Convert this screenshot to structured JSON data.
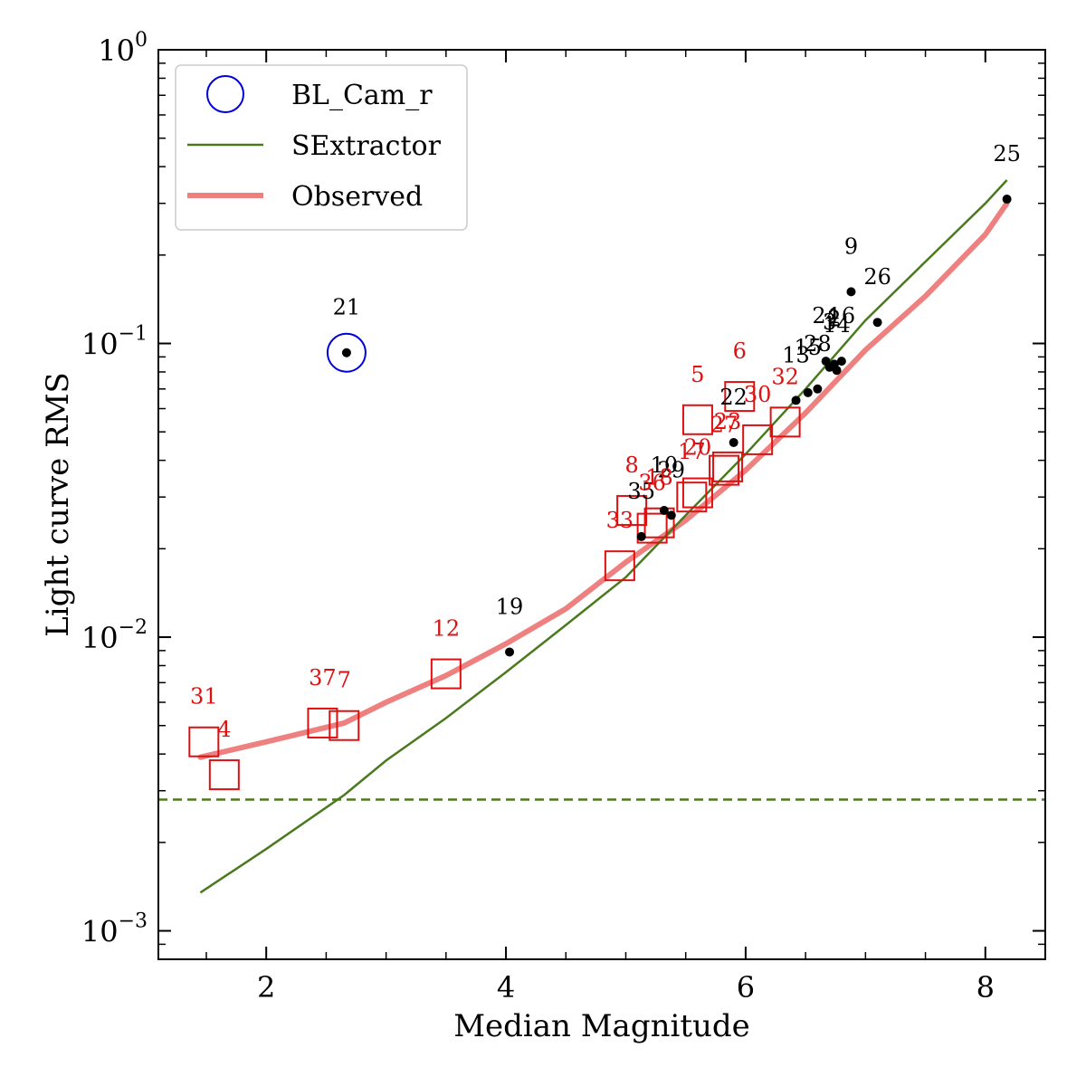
{
  "chart_data": {
    "type": "scatter",
    "title": "",
    "xlabel": "Median Magnitude",
    "ylabel": "Light curve RMS",
    "xlim": [
      1.1,
      8.5
    ],
    "ylim": [
      0.0008,
      1.0
    ],
    "yscale": "log",
    "x_ticks": [
      2,
      4,
      6,
      8
    ],
    "x_tick_labels": [
      "2",
      "4",
      "6",
      "8"
    ],
    "y_ticks": [
      0.001,
      0.01,
      0.1,
      1
    ],
    "y_tick_labels": [
      {
        "base": "10",
        "exp": "−3"
      },
      {
        "base": "10",
        "exp": "−2"
      },
      {
        "base": "10",
        "exp": "−1"
      },
      {
        "base": "10",
        "exp": "0"
      }
    ],
    "legend": {
      "placement": "top-left",
      "entries": [
        {
          "label": "BL_Cam_r",
          "marker": "circle",
          "color": "#0000dd"
        },
        {
          "label": "SExtractor",
          "marker": "line",
          "color": "#4a7a1e"
        },
        {
          "label": "Observed",
          "marker": "thick-line",
          "color": "#ee8080"
        }
      ]
    },
    "colors": {
      "points": "#000000",
      "squares": "#dd1111",
      "labels_black": "#000000",
      "labels_red": "#dd1111",
      "target": "#0000dd",
      "sextractor": "#4a7a1e",
      "observed": "#ee8080"
    },
    "sextractor_floor": 0.0028,
    "series": [
      {
        "name": "SExtractor",
        "style": "line",
        "x": [
          1.45,
          2.0,
          2.65,
          3.0,
          3.5,
          4.0,
          4.5,
          5.0,
          5.5,
          6.0,
          6.5,
          7.0,
          7.5,
          8.0,
          8.18
        ],
        "y": [
          0.00135,
          0.0019,
          0.0029,
          0.0038,
          0.0053,
          0.0076,
          0.011,
          0.016,
          0.026,
          0.042,
          0.07,
          0.12,
          0.19,
          0.3,
          0.36
        ]
      },
      {
        "name": "Observed",
        "style": "thick-line",
        "x": [
          1.45,
          2.0,
          2.65,
          3.0,
          3.5,
          4.0,
          4.5,
          5.0,
          5.5,
          6.0,
          6.5,
          7.0,
          7.5,
          8.0,
          8.18
        ],
        "y": [
          0.0039,
          0.0044,
          0.0051,
          0.006,
          0.0074,
          0.0095,
          0.0125,
          0.018,
          0.025,
          0.037,
          0.058,
          0.095,
          0.145,
          0.235,
          0.3
        ]
      },
      {
        "name": "BL_Cam_r",
        "style": "target",
        "points": [
          {
            "x": 2.67,
            "y": 0.093,
            "label": "21"
          }
        ]
      },
      {
        "name": "black",
        "style": "dot",
        "points": [
          {
            "x": 8.18,
            "y": 0.31,
            "label": "25"
          },
          {
            "x": 6.88,
            "y": 0.15,
            "label": "9"
          },
          {
            "x": 7.1,
            "y": 0.118,
            "label": "26"
          },
          {
            "x": 6.8,
            "y": 0.087,
            "label": "16"
          },
          {
            "x": 6.74,
            "y": 0.085,
            "label": "2"
          },
          {
            "x": 6.7,
            "y": 0.083,
            "label": "3"
          },
          {
            "x": 6.76,
            "y": 0.081,
            "label": "14"
          },
          {
            "x": 6.67,
            "y": 0.087,
            "label": "24"
          },
          {
            "x": 6.6,
            "y": 0.07,
            "label": "28"
          },
          {
            "x": 6.52,
            "y": 0.068,
            "label": "15"
          },
          {
            "x": 6.42,
            "y": 0.064,
            "label": "13"
          },
          {
            "x": 5.9,
            "y": 0.046,
            "label": "22"
          },
          {
            "x": 5.32,
            "y": 0.027,
            "label": "10"
          },
          {
            "x": 5.38,
            "y": 0.026,
            "label": "29"
          },
          {
            "x": 5.13,
            "y": 0.022,
            "label": "35"
          },
          {
            "x": 4.03,
            "y": 0.0089,
            "label": "19"
          }
        ]
      },
      {
        "name": "red",
        "style": "square",
        "points": [
          {
            "x": 1.48,
            "y": 0.0044,
            "label": "31"
          },
          {
            "x": 1.65,
            "y": 0.0034,
            "label": "4"
          },
          {
            "x": 2.47,
            "y": 0.0051,
            "label": "37"
          },
          {
            "x": 2.65,
            "y": 0.005,
            "label": "7"
          },
          {
            "x": 3.5,
            "y": 0.0075,
            "label": "12"
          },
          {
            "x": 4.95,
            "y": 0.0175,
            "label": "33"
          },
          {
            "x": 5.05,
            "y": 0.027,
            "label": "8"
          },
          {
            "x": 5.22,
            "y": 0.0235,
            "label": "36"
          },
          {
            "x": 5.28,
            "y": 0.0245,
            "label": "18"
          },
          {
            "x": 5.55,
            "y": 0.03,
            "label": "17"
          },
          {
            "x": 5.6,
            "y": 0.031,
            "label": "20"
          },
          {
            "x": 5.6,
            "y": 0.055,
            "label": "5"
          },
          {
            "x": 5.82,
            "y": 0.037,
            "label": "27"
          },
          {
            "x": 5.85,
            "y": 0.038,
            "label": "23"
          },
          {
            "x": 5.95,
            "y": 0.066,
            "label": "6"
          },
          {
            "x": 6.1,
            "y": 0.047,
            "label": "30"
          },
          {
            "x": 6.33,
            "y": 0.054,
            "label": "32"
          }
        ]
      }
    ],
    "label_colors": {
      "25": "black",
      "9": "black",
      "26": "black",
      "16": "black",
      "2": "black",
      "3": "black",
      "14": "black",
      "24": "black",
      "28": "black",
      "15": "black",
      "13": "black",
      "22": "black",
      "10": "black",
      "29": "black",
      "35": "black",
      "19": "black",
      "21": "black"
    }
  }
}
